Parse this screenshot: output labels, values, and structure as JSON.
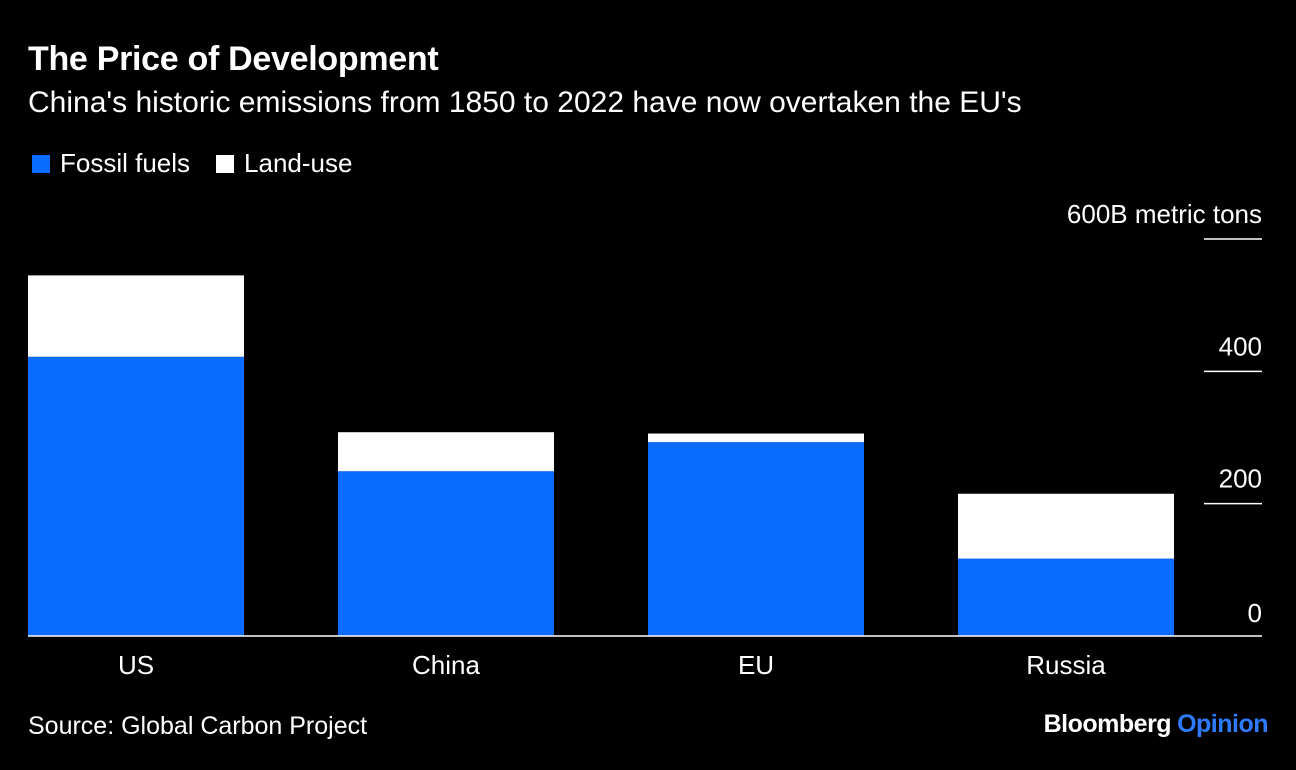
{
  "header": {
    "title": "The Price of Development",
    "subtitle": "China's historic emissions from 1850 to 2022 have now overtaken the EU's"
  },
  "footer": {
    "source": "Source: Global Carbon Project",
    "brand_name": "Bloomberg",
    "brand_section": "Opinion"
  },
  "colors": {
    "background": "#000000",
    "fossil": "#0a6cff",
    "landuse": "#ffffff",
    "text": "#ffffff",
    "brand_accent": "#2f7bff"
  },
  "chart_data": {
    "type": "bar",
    "stacked": true,
    "categories": [
      "US",
      "China",
      "EU",
      "Russia"
    ],
    "series": [
      {
        "name": "Fossil fuels",
        "values": [
          422,
          249,
          293,
          117
        ]
      },
      {
        "name": "Land-use",
        "values": [
          123,
          59,
          13,
          98
        ]
      }
    ],
    "ylim": [
      0,
      600
    ],
    "yticks": [
      0,
      200,
      400,
      600
    ],
    "ytick_labels": [
      "0",
      "200",
      "400",
      "600B metric tons"
    ],
    "axis_position": "right",
    "legend_position": "top-left",
    "grid": false
  }
}
